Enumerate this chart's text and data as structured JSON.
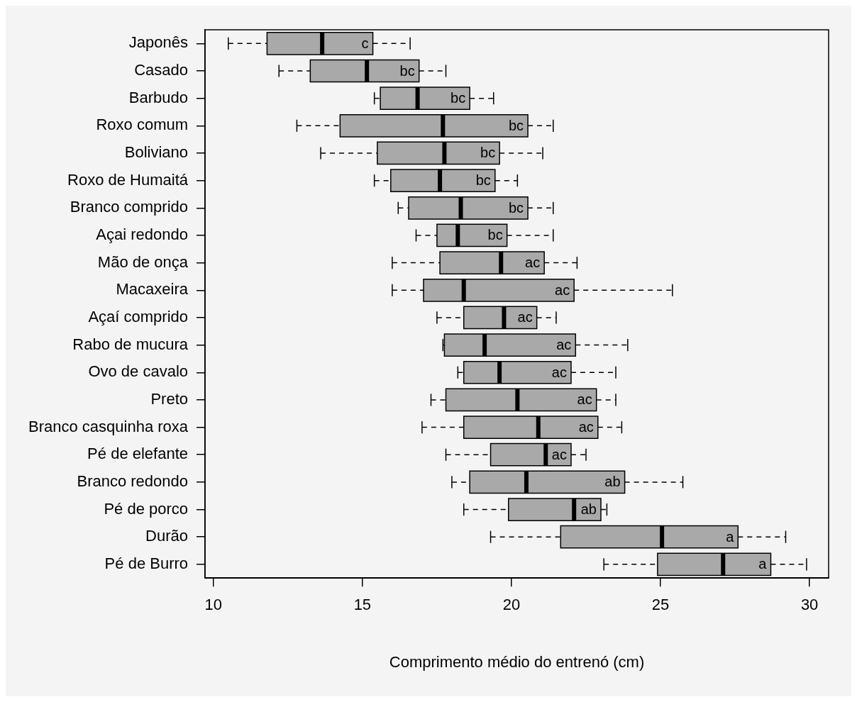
{
  "chart_data": {
    "type": "box",
    "orientation": "horizontal",
    "xlabel": "Comprimento médio do entrenó (cm)",
    "categories": [
      "Japonês",
      "Casado",
      "Barbudo",
      "Roxo comum",
      "Boliviano",
      "Roxo de Humaitá",
      "Branco comprido",
      "Açai redondo",
      "Mão de onça",
      "Macaxeira",
      "Açaí comprido",
      "Rabo de mucura",
      "Ovo de cavalo",
      "Preto",
      "Branco casquinha roxa",
      "Pé de elefante",
      "Branco redondo",
      "Pé de porco",
      "Durão",
      "Pé de Burro"
    ],
    "color": "#a9a9a9",
    "boxes": [
      {
        "low": 10.5,
        "q1": 11.8,
        "median": 13.65,
        "q3": 15.35,
        "high": 16.6
      },
      {
        "low": 12.2,
        "q1": 13.25,
        "median": 15.15,
        "q3": 16.9,
        "high": 17.8
      },
      {
        "low": 15.4,
        "q1": 15.6,
        "median": 16.85,
        "q3": 18.6,
        "high": 19.4
      },
      {
        "low": 12.8,
        "q1": 14.25,
        "median": 17.7,
        "q3": 20.55,
        "high": 21.4
      },
      {
        "low": 13.6,
        "q1": 15.5,
        "median": 17.75,
        "q3": 19.6,
        "high": 21.05
      },
      {
        "low": 15.4,
        "q1": 15.95,
        "median": 17.6,
        "q3": 19.45,
        "high": 20.2
      },
      {
        "low": 16.2,
        "q1": 16.55,
        "median": 18.3,
        "q3": 20.55,
        "high": 21.4
      },
      {
        "low": 16.8,
        "q1": 17.5,
        "median": 18.2,
        "q3": 19.85,
        "high": 21.4
      },
      {
        "low": 16.0,
        "q1": 17.6,
        "median": 19.65,
        "q3": 21.1,
        "high": 22.2
      },
      {
        "low": 16.0,
        "q1": 17.05,
        "median": 18.4,
        "q3": 22.1,
        "high": 25.4
      },
      {
        "low": 17.5,
        "q1": 18.4,
        "median": 19.75,
        "q3": 20.85,
        "high": 21.5
      },
      {
        "low": 17.7,
        "q1": 17.75,
        "median": 19.1,
        "q3": 22.15,
        "high": 23.9
      },
      {
        "low": 18.2,
        "q1": 18.4,
        "median": 19.6,
        "q3": 22.0,
        "high": 23.5
      },
      {
        "low": 17.3,
        "q1": 17.8,
        "median": 20.2,
        "q3": 22.85,
        "high": 23.5
      },
      {
        "low": 17.0,
        "q1": 18.4,
        "median": 20.9,
        "q3": 22.9,
        "high": 23.7
      },
      {
        "low": 17.8,
        "q1": 19.3,
        "median": 21.15,
        "q3": 22.0,
        "high": 22.5
      },
      {
        "low": 18.0,
        "q1": 18.6,
        "median": 20.5,
        "q3": 23.8,
        "high": 25.75
      },
      {
        "low": 18.4,
        "q1": 19.9,
        "median": 22.1,
        "q3": 23.0,
        "high": 23.2
      },
      {
        "low": 19.3,
        "q1": 21.65,
        "median": 25.05,
        "q3": 27.6,
        "high": 29.2
      },
      {
        "low": 23.1,
        "q1": 24.9,
        "median": 27.1,
        "q3": 28.7,
        "high": 29.9
      }
    ],
    "annotations": [
      {
        "text": "c",
        "x": 15.35,
        "y": "Japonês"
      },
      {
        "text": "bc",
        "x": 16.9,
        "y": "Casado"
      },
      {
        "text": "bc",
        "x": 18.6,
        "y": "Barbudo"
      },
      {
        "text": "bc",
        "x": 20.55,
        "y": "Roxo comum"
      },
      {
        "text": "bc",
        "x": 19.6,
        "y": "Boliviano"
      },
      {
        "text": "bc",
        "x": 19.45,
        "y": "Roxo de Humaitá"
      },
      {
        "text": "bc",
        "x": 20.55,
        "y": "Branco comprido"
      },
      {
        "text": "bc",
        "x": 19.85,
        "y": "Açai redondo"
      },
      {
        "text": "ac",
        "x": 21.1,
        "y": "Mão de onça"
      },
      {
        "text": "ac",
        "x": 22.1,
        "y": "Macaxeira"
      },
      {
        "text": "ac",
        "x": 20.85,
        "y": "Açaí comprido"
      },
      {
        "text": "ac",
        "x": 22.15,
        "y": "Rabo de mucura"
      },
      {
        "text": "ac",
        "x": 22.0,
        "y": "Ovo de cavalo"
      },
      {
        "text": "ac",
        "x": 22.85,
        "y": "Preto"
      },
      {
        "text": "ac",
        "x": 22.9,
        "y": "Branco casquinha roxa"
      },
      {
        "text": "ac",
        "x": 22.0,
        "y": "Pé de elefante"
      },
      {
        "text": "ab",
        "x": 23.8,
        "y": "Branco redondo"
      },
      {
        "text": "ab",
        "x": 23.0,
        "y": "Pé de porco"
      },
      {
        "text": "a",
        "x": 27.6,
        "y": "Durão"
      },
      {
        "text": "a",
        "x": 28.7,
        "y": "Pé de Burro"
      }
    ],
    "xlim": [
      9.72,
      30.64
    ],
    "xticks": [
      10,
      15,
      20,
      25,
      30
    ]
  }
}
